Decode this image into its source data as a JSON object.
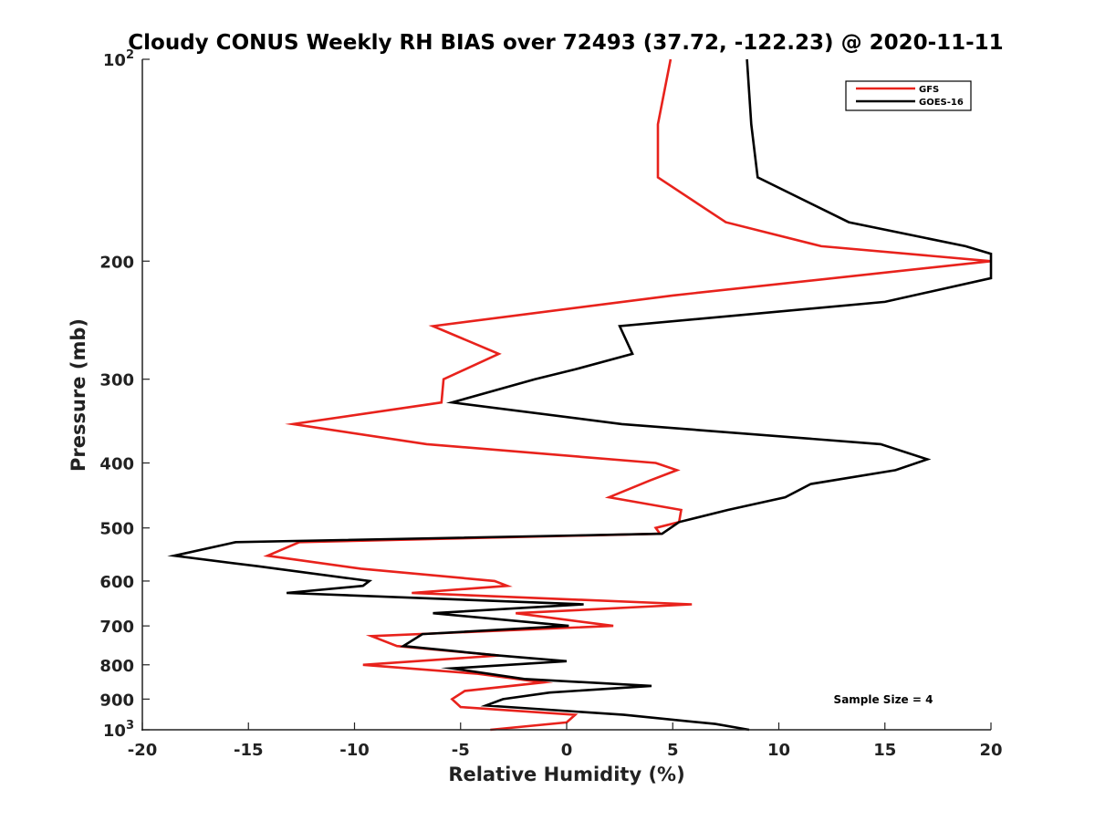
{
  "chart_data": {
    "type": "line",
    "title": "Cloudy CONUS Weekly RH BIAS over 72493 (37.72, -122.23) @ 2020-11-11",
    "xlabel": "Relative Humidity (%)",
    "ylabel": "Pressure (mb)",
    "xlim": [
      -20,
      20
    ],
    "ylim": [
      100,
      1000
    ],
    "yscale": "log",
    "yaxis_inverted": true,
    "xticks": [
      -20,
      -15,
      -10,
      -5,
      0,
      5,
      10,
      15,
      20
    ],
    "xtick_labels": [
      "-20",
      "-15",
      "-10",
      "-5",
      "0",
      "5",
      "10",
      "15",
      "20"
    ],
    "yticks": [
      100,
      200,
      300,
      400,
      500,
      600,
      700,
      800,
      900,
      1000
    ],
    "ytick_labels": [
      {
        "base": "10",
        "exp": "2"
      },
      {
        "base": "200",
        "exp": ""
      },
      {
        "base": "300",
        "exp": ""
      },
      {
        "base": "400",
        "exp": ""
      },
      {
        "base": "500",
        "exp": ""
      },
      {
        "base": "600",
        "exp": ""
      },
      {
        "base": "700",
        "exp": ""
      },
      {
        "base": "800",
        "exp": ""
      },
      {
        "base": "900",
        "exp": ""
      },
      {
        "base": "10",
        "exp": "3"
      }
    ],
    "grid": false,
    "legend_position": "top-right",
    "annotation": "Sample Size = 4",
    "series": [
      {
        "name": "GFS",
        "color": "#e8221c",
        "points": [
          {
            "x": 4.9,
            "p": 100
          },
          {
            "x": 4.3,
            "p": 125
          },
          {
            "x": 4.3,
            "p": 150
          },
          {
            "x": 7.5,
            "p": 175
          },
          {
            "x": 12.0,
            "p": 190
          },
          {
            "x": 20.0,
            "p": 200
          },
          {
            "x": 5.0,
            "p": 225
          },
          {
            "x": -6.3,
            "p": 250
          },
          {
            "x": -3.2,
            "p": 275
          },
          {
            "x": -5.8,
            "p": 300
          },
          {
            "x": -5.9,
            "p": 325
          },
          {
            "x": -12.9,
            "p": 350
          },
          {
            "x": -6.6,
            "p": 375
          },
          {
            "x": 4.2,
            "p": 400
          },
          {
            "x": 5.2,
            "p": 410
          },
          {
            "x": 3.9,
            "p": 425
          },
          {
            "x": 2.0,
            "p": 450
          },
          {
            "x": 5.4,
            "p": 470
          },
          {
            "x": 5.3,
            "p": 490
          },
          {
            "x": 4.2,
            "p": 500
          },
          {
            "x": 4.4,
            "p": 510
          },
          {
            "x": -12.6,
            "p": 525
          },
          {
            "x": -14.1,
            "p": 550
          },
          {
            "x": -9.7,
            "p": 575
          },
          {
            "x": -3.4,
            "p": 600
          },
          {
            "x": -2.8,
            "p": 610
          },
          {
            "x": -7.3,
            "p": 625
          },
          {
            "x": 5.9,
            "p": 650
          },
          {
            "x": -2.4,
            "p": 670
          },
          {
            "x": 2.2,
            "p": 700
          },
          {
            "x": -9.2,
            "p": 725
          },
          {
            "x": -8.0,
            "p": 750
          },
          {
            "x": -3.2,
            "p": 775
          },
          {
            "x": -9.6,
            "p": 800
          },
          {
            "x": -4.2,
            "p": 825
          },
          {
            "x": -1.1,
            "p": 850
          },
          {
            "x": -4.8,
            "p": 875
          },
          {
            "x": -5.4,
            "p": 900
          },
          {
            "x": -5.0,
            "p": 925
          },
          {
            "x": 0.4,
            "p": 950
          },
          {
            "x": 0.0,
            "p": 975
          },
          {
            "x": -3.6,
            "p": 1000
          }
        ]
      },
      {
        "name": "GOES-16",
        "color": "#000000",
        "points": [
          {
            "x": 8.5,
            "p": 100
          },
          {
            "x": 8.7,
            "p": 125
          },
          {
            "x": 9.0,
            "p": 150
          },
          {
            "x": 13.3,
            "p": 175
          },
          {
            "x": 18.8,
            "p": 190
          },
          {
            "x": 20.0,
            "p": 195
          },
          {
            "x": 20.0,
            "p": 212
          },
          {
            "x": 15.0,
            "p": 230
          },
          {
            "x": 2.5,
            "p": 250
          },
          {
            "x": 3.1,
            "p": 275
          },
          {
            "x": 0.4,
            "p": 290
          },
          {
            "x": -1.5,
            "p": 300
          },
          {
            "x": -5.4,
            "p": 325
          },
          {
            "x": 2.6,
            "p": 350
          },
          {
            "x": 14.8,
            "p": 375
          },
          {
            "x": 17.0,
            "p": 395
          },
          {
            "x": 15.5,
            "p": 410
          },
          {
            "x": 11.5,
            "p": 430
          },
          {
            "x": 10.3,
            "p": 450
          },
          {
            "x": 7.6,
            "p": 470
          },
          {
            "x": 5.3,
            "p": 490
          },
          {
            "x": 4.5,
            "p": 510
          },
          {
            "x": -15.6,
            "p": 525
          },
          {
            "x": -18.5,
            "p": 550
          },
          {
            "x": -14.6,
            "p": 570
          },
          {
            "x": -9.3,
            "p": 600
          },
          {
            "x": -9.6,
            "p": 610
          },
          {
            "x": -13.2,
            "p": 625
          },
          {
            "x": 0.8,
            "p": 650
          },
          {
            "x": -6.3,
            "p": 670
          },
          {
            "x": 0.1,
            "p": 700
          },
          {
            "x": -6.8,
            "p": 720
          },
          {
            "x": -7.7,
            "p": 750
          },
          {
            "x": -3.2,
            "p": 775
          },
          {
            "x": 0.0,
            "p": 790
          },
          {
            "x": -5.4,
            "p": 810
          },
          {
            "x": -2.0,
            "p": 840
          },
          {
            "x": 4.0,
            "p": 860
          },
          {
            "x": -0.8,
            "p": 880
          },
          {
            "x": -3.0,
            "p": 900
          },
          {
            "x": -3.8,
            "p": 920
          },
          {
            "x": 2.7,
            "p": 950
          },
          {
            "x": 7.0,
            "p": 980
          },
          {
            "x": 8.6,
            "p": 1000
          }
        ]
      }
    ]
  }
}
